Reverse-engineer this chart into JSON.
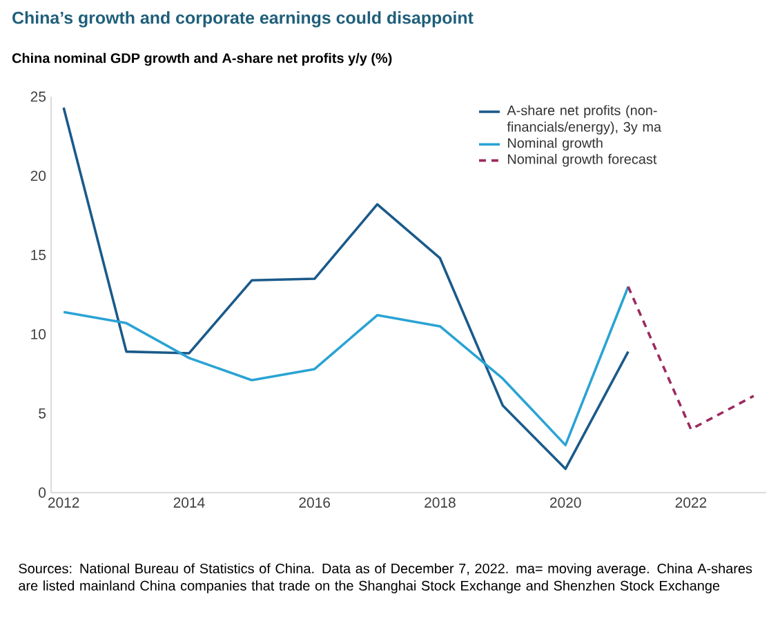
{
  "chart_data": {
    "type": "line",
    "title": "China’s growth and corporate earnings could disappoint",
    "subtitle": "China nominal GDP growth and A-share net profits y/y (%)",
    "x": [
      2012,
      2013,
      2014,
      2015,
      2016,
      2017,
      2018,
      2019,
      2020,
      2021
    ],
    "series": [
      {
        "name": "A-share net profits (non-financials/energy), 3y ma",
        "color": "#1a5a8a",
        "values": [
          24.3,
          8.9,
          8.8,
          13.4,
          13.5,
          18.2,
          14.8,
          5.5,
          1.5,
          8.9
        ]
      },
      {
        "name": "Nominal growth",
        "color": "#2aa3d4",
        "values": [
          11.4,
          10.7,
          8.5,
          7.1,
          7.8,
          11.2,
          10.5,
          7.2,
          3.0,
          13.0
        ]
      },
      {
        "name": "Nominal growth forecast",
        "color": "#9c2a5e",
        "x": [
          2021,
          2022,
          2023
        ],
        "values": [
          13.0,
          4.0,
          6.1
        ],
        "line_style": "dashed"
      }
    ],
    "xlim": [
      2011.8,
      2023.2
    ],
    "xticks": [
      2012,
      2014,
      2016,
      2018,
      2020,
      2022
    ],
    "ylim": [
      0,
      25
    ],
    "yticks": [
      0,
      5,
      10,
      15,
      20,
      25
    ],
    "grid": false,
    "legend": "top right",
    "marker": "none",
    "annotations": [
      "Sources: National Bureau of Statistics of China. Data as of December 7, 2022. ma= moving average. China A-shares are listed mainland China companies that trade on the Shanghai Stock Exchange and Shenzhen Stock Exchange"
    ]
  }
}
